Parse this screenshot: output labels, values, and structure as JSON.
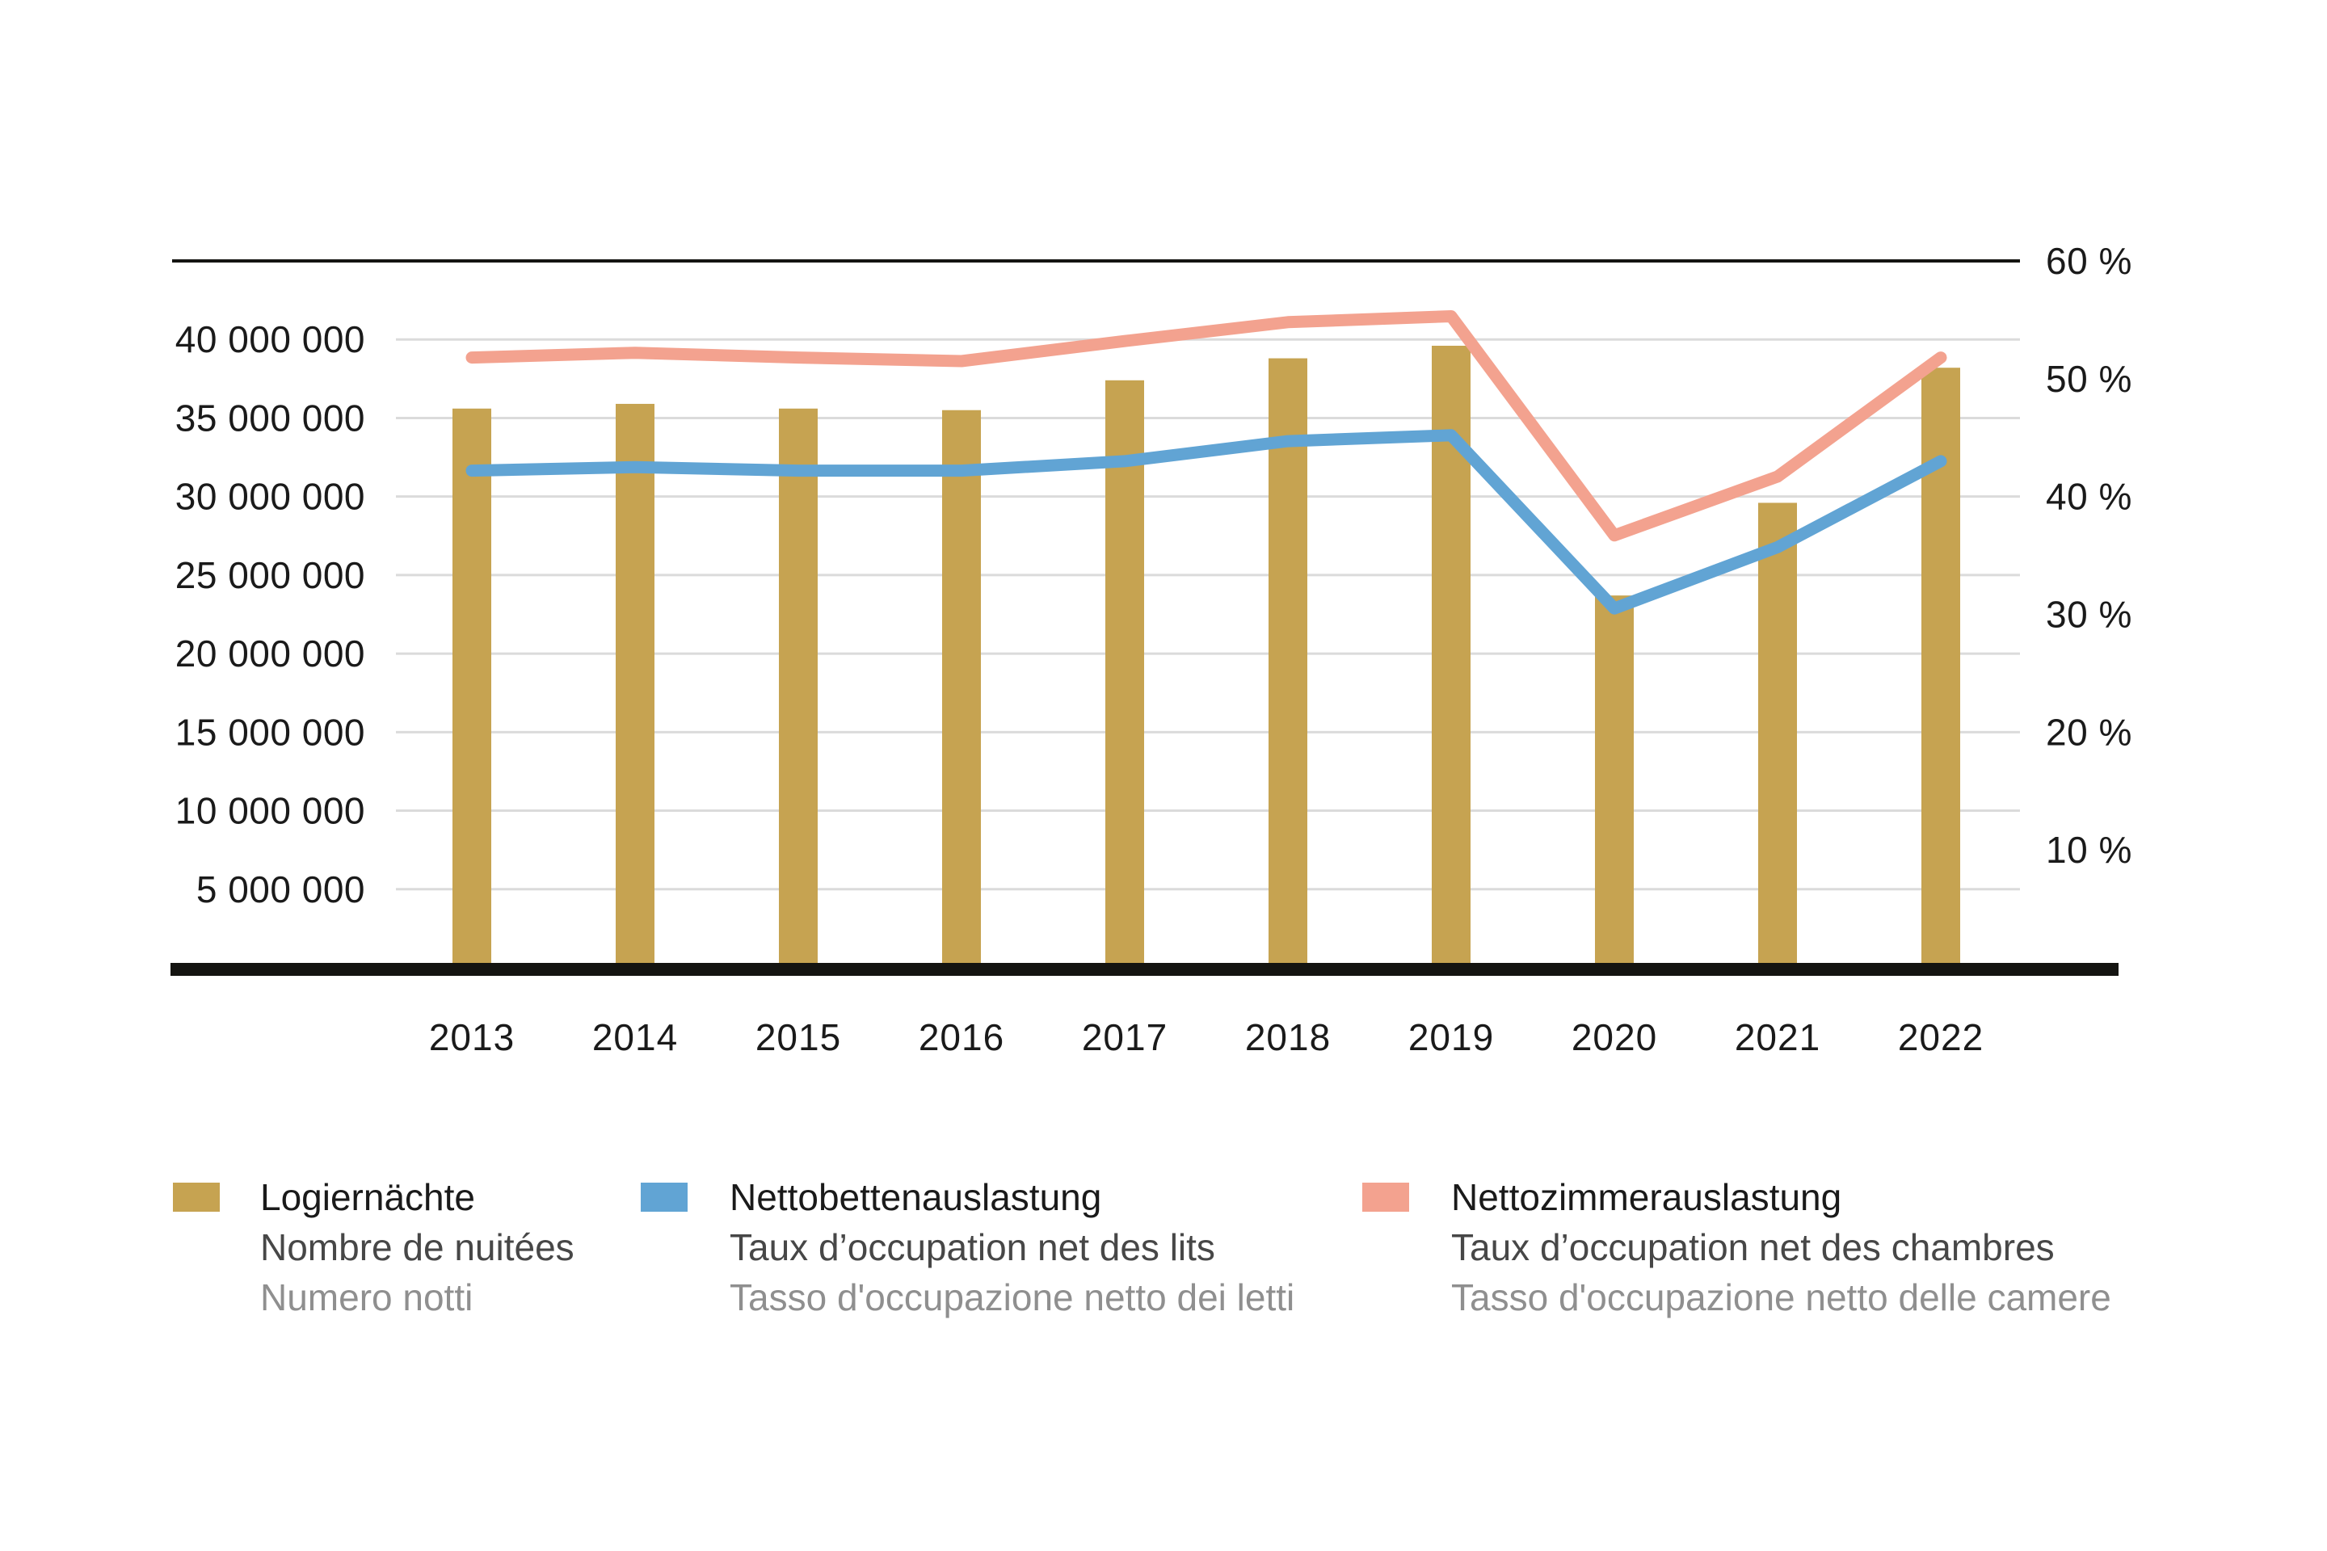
{
  "chart_data": {
    "type": "bar",
    "subtype": "bar-and-line-combo",
    "categories": [
      "2013",
      "2014",
      "2015",
      "2016",
      "2017",
      "2018",
      "2019",
      "2020",
      "2021",
      "2022"
    ],
    "series": [
      {
        "name": "Logiernächte",
        "type": "bar",
        "axis": "left",
        "color": "#C6A351",
        "values": [
          35600000,
          35900000,
          35600000,
          35500000,
          37400000,
          38800000,
          39600000,
          23700000,
          29600000,
          38200000
        ]
      },
      {
        "name": "Nettobettenauslastung",
        "type": "line",
        "axis": "right",
        "color": "#61A4D4",
        "values": [
          42.2,
          42.5,
          42.2,
          42.2,
          43.0,
          44.7,
          45.2,
          30.5,
          35.7,
          43.0
        ]
      },
      {
        "name": "Nettozimmerauslastung",
        "type": "line",
        "axis": "right",
        "color": "#F3A28F",
        "values": [
          51.8,
          52.2,
          51.8,
          51.5,
          53.2,
          54.8,
          55.3,
          36.7,
          41.7,
          51.8
        ]
      }
    ],
    "left_axis": {
      "min": 0,
      "max": 45000000,
      "ticks": [
        {
          "value": 5000000,
          "label": "5 000 000"
        },
        {
          "value": 10000000,
          "label": "10 000 000"
        },
        {
          "value": 15000000,
          "label": "15 000 000"
        },
        {
          "value": 20000000,
          "label": "20 000 000"
        },
        {
          "value": 25000000,
          "label": "25 000 000"
        },
        {
          "value": 30000000,
          "label": "30 000 000"
        },
        {
          "value": 35000000,
          "label": "35 000 000"
        },
        {
          "value": 40000000,
          "label": "40 000 000"
        }
      ]
    },
    "right_axis": {
      "min": 0,
      "max": 60,
      "ticks": [
        {
          "value": 10,
          "label": "10 %"
        },
        {
          "value": 20,
          "label": "20 %"
        },
        {
          "value": 30,
          "label": "30 %"
        },
        {
          "value": 40,
          "label": "40 %"
        },
        {
          "value": 50,
          "label": "50 %"
        },
        {
          "value": 60,
          "label": "60 %"
        }
      ]
    },
    "grid": true,
    "legend_position": "bottom"
  },
  "legend": {
    "items": [
      {
        "id": "logiernaechte",
        "swatch_color": "#C6A351",
        "label_de": "Logiernächte",
        "label_fr": "Nombre de nuitées",
        "label_it": "Numero notti"
      },
      {
        "id": "nettobettenauslastung",
        "swatch_color": "#61A4D4",
        "label_de": "Nettobettenauslastung",
        "label_fr": "Taux d’occupation net des lits",
        "label_it": "Tasso d'occupazione netto dei letti"
      },
      {
        "id": "nettozimmerauslastung",
        "swatch_color": "#F3A28F",
        "label_de": "Nettozimmerauslastung",
        "label_fr": "Taux d’occupation net des chambres",
        "label_it": "Tasso d'occupazione netto delle camere"
      }
    ]
  },
  "colors": {
    "background": "#FFFFFF",
    "grid": "#DBDBDB",
    "axis": "#141411",
    "text_primary": "#1A1A1A",
    "text_secondary": "#474747",
    "text_tertiary": "#8F8F8F"
  }
}
